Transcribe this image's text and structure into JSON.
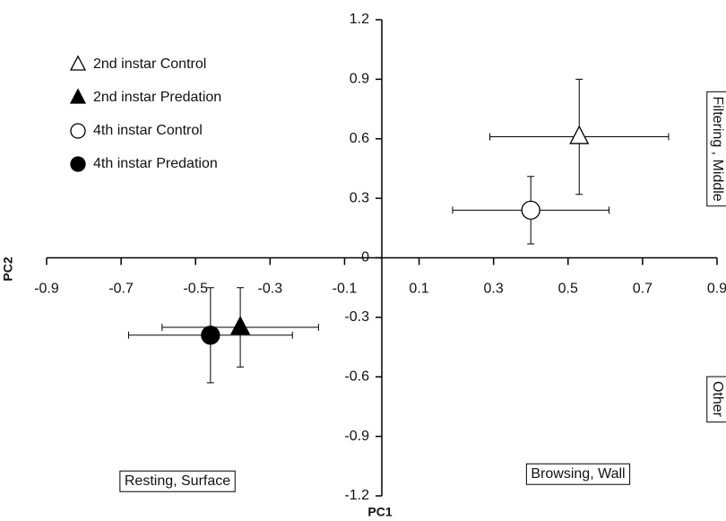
{
  "chart_data": {
    "type": "scatter",
    "x_label": "PC1",
    "y_label": "PC2",
    "xlim": [
      -0.9,
      0.9
    ],
    "xticks": [
      -0.9,
      -0.7,
      -0.5,
      -0.3,
      -0.1,
      0.1,
      0.3,
      0.5,
      0.7,
      0.9
    ],
    "ylim": [
      -1.2,
      1.2
    ],
    "yticks": [
      -1.2,
      -0.9,
      -0.6,
      -0.3,
      0,
      0.3,
      0.6,
      0.9,
      1.2
    ],
    "legend": "upper left",
    "series": [
      {
        "name": "2nd instar Control",
        "marker": "triangle",
        "color": "#ffffff",
        "x": [
          0.53
        ],
        "y": [
          0.61
        ],
        "xerr": [
          0.24
        ],
        "yerr": [
          0.29
        ]
      },
      {
        "name": "2nd instar Predation",
        "marker": "triangle",
        "color": "#000000",
        "x": [
          -0.38
        ],
        "y": [
          -0.35
        ],
        "xerr": [
          0.21
        ],
        "yerr": [
          0.2
        ]
      },
      {
        "name": "4th instar Control",
        "marker": "circle",
        "color": "#ffffff",
        "x": [
          0.4
        ],
        "y": [
          0.24
        ],
        "xerr": [
          0.21
        ],
        "yerr": [
          0.17
        ]
      },
      {
        "name": "4th instar Predation",
        "marker": "circle",
        "color": "#000000",
        "x": [
          -0.46
        ],
        "y": [
          -0.39
        ],
        "xerr": [
          0.22
        ],
        "yerr": [
          0.24
        ]
      }
    ],
    "annotations": [
      "Filtering , Middle",
      "Other",
      "Resting, Surface",
      "Browsing, Wall"
    ]
  }
}
